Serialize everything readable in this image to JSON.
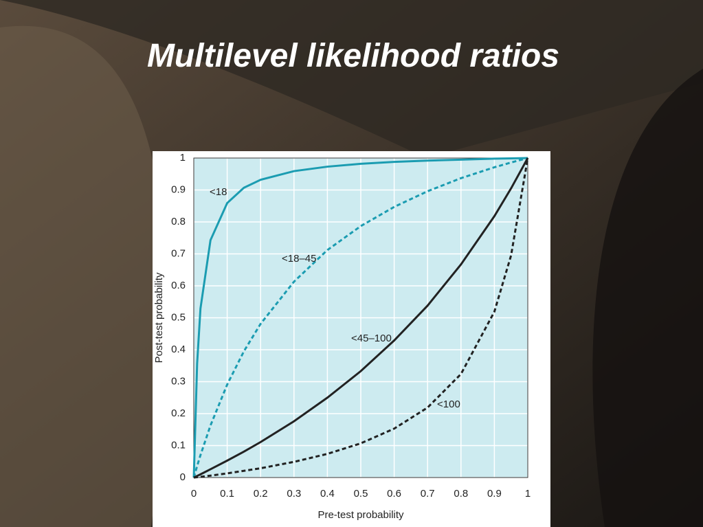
{
  "chart_data": {
    "type": "line",
    "title": "Multilevel likelihood ratios",
    "x_label": "Pre-test probability",
    "y_label": "Post-test probability",
    "x": [
      0,
      0.01,
      0.02,
      0.05,
      0.1,
      0.15,
      0.2,
      0.3,
      0.4,
      0.5,
      0.6,
      0.7,
      0.8,
      0.9,
      0.95,
      1
    ],
    "series": [
      {
        "name": "<18",
        "color": "#1b9cb1",
        "dashed": false,
        "values": [
          0,
          0.357,
          0.529,
          0.743,
          0.859,
          0.907,
          0.932,
          0.959,
          0.973,
          0.982,
          0.988,
          0.992,
          0.995,
          0.998,
          0.999,
          1
        ]
      },
      {
        "name": "<18–45",
        "color": "#1b9cb1",
        "dashed": true,
        "values": [
          0,
          0.036,
          0.07,
          0.163,
          0.291,
          0.395,
          0.481,
          0.613,
          0.712,
          0.787,
          0.847,
          0.896,
          0.937,
          0.971,
          0.986,
          1
        ]
      },
      {
        "name": "<45–100",
        "color": "#222222",
        "dashed": false,
        "values": [
          0,
          0.005,
          0.01,
          0.026,
          0.053,
          0.081,
          0.111,
          0.176,
          0.25,
          0.333,
          0.429,
          0.538,
          0.667,
          0.818,
          0.905,
          1
        ]
      },
      {
        "name": "<100",
        "color": "#222222",
        "dashed": true,
        "values": [
          0,
          0.001,
          0.002,
          0.006,
          0.013,
          0.021,
          0.029,
          0.049,
          0.074,
          0.107,
          0.153,
          0.219,
          0.324,
          0.519,
          0.695,
          1
        ]
      }
    ],
    "xlim": [
      0,
      1
    ],
    "ylim": [
      0,
      1
    ],
    "xticks": [
      0,
      0.1,
      0.2,
      0.3,
      0.4,
      0.5,
      0.6,
      0.7,
      0.8,
      0.9,
      1
    ],
    "yticks": [
      0,
      0.1,
      0.2,
      0.3,
      0.4,
      0.5,
      0.6,
      0.7,
      0.8,
      0.9,
      1
    ],
    "grid": true
  }
}
